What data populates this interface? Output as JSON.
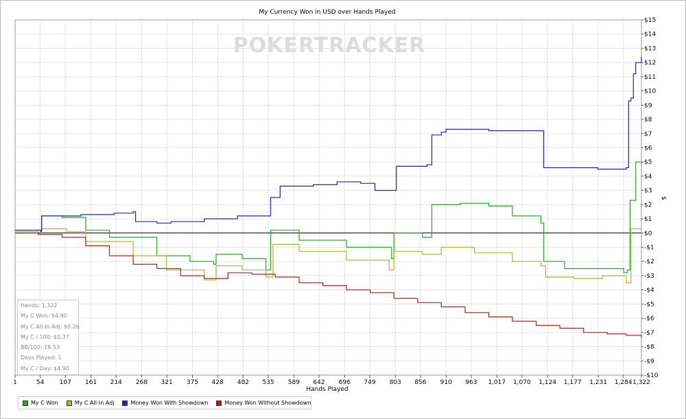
{
  "chart_data": {
    "type": "line",
    "title": "My Currency Won in USD over Hands Played",
    "xlabel": "Hands Played",
    "ylabel": "$",
    "xlim": [
      1,
      1322
    ],
    "ylim": [
      -10,
      15
    ],
    "x_ticks": [
      1,
      54,
      107,
      161,
      214,
      268,
      321,
      375,
      428,
      482,
      535,
      589,
      642,
      696,
      749,
      803,
      856,
      910,
      963,
      1017,
      1070,
      1124,
      1177,
      1231,
      1284,
      1322
    ],
    "y_ticks": [
      15,
      14,
      13,
      12,
      11,
      10,
      9,
      8,
      7,
      6,
      5,
      4,
      3,
      2,
      1,
      0,
      -1,
      -2,
      -3,
      -4,
      -5,
      -6,
      -7,
      -8,
      -9,
      -10
    ],
    "grid": true,
    "legend_position": "bottom",
    "series": [
      {
        "name": "My C Won",
        "color": "#22aa22",
        "points": [
          [
            1,
            0.2
          ],
          [
            55,
            0.1
          ],
          [
            57,
            1.2
          ],
          [
            100,
            1.1
          ],
          [
            150,
            0.2
          ],
          [
            200,
            -0.3
          ],
          [
            300,
            -1.6
          ],
          [
            370,
            -2.0
          ],
          [
            420,
            -2.2
          ],
          [
            425,
            -1.5
          ],
          [
            480,
            -1.8
          ],
          [
            530,
            -2.6
          ],
          [
            540,
            0.2
          ],
          [
            600,
            -0.5
          ],
          [
            700,
            -1.0
          ],
          [
            795,
            -1.8
          ],
          [
            800,
            0.0
          ],
          [
            860,
            -0.3
          ],
          [
            880,
            2.0
          ],
          [
            940,
            2.1
          ],
          [
            1000,
            1.9
          ],
          [
            1050,
            1.2
          ],
          [
            1110,
            0.7
          ],
          [
            1116,
            -2.0
          ],
          [
            1160,
            -2.5
          ],
          [
            1230,
            -2.5
          ],
          [
            1285,
            -2.8
          ],
          [
            1292,
            -2.6
          ],
          [
            1298,
            2.3
          ],
          [
            1310,
            5.0
          ],
          [
            1322,
            4.9
          ]
        ]
      },
      {
        "name": "My C All-In Adj",
        "color": "#b4b428",
        "points": [
          [
            1,
            0.1
          ],
          [
            50,
            -0.1
          ],
          [
            57,
            0.3
          ],
          [
            110,
            0.1
          ],
          [
            150,
            -0.6
          ],
          [
            250,
            -1.6
          ],
          [
            320,
            -2.6
          ],
          [
            400,
            -3.3
          ],
          [
            425,
            -2.3
          ],
          [
            480,
            -2.6
          ],
          [
            530,
            -3.1
          ],
          [
            545,
            -0.8
          ],
          [
            600,
            -1.3
          ],
          [
            700,
            -1.9
          ],
          [
            790,
            -2.6
          ],
          [
            800,
            -1.3
          ],
          [
            860,
            -1.5
          ],
          [
            900,
            -1.0
          ],
          [
            970,
            -1.4
          ],
          [
            1050,
            -2.0
          ],
          [
            1110,
            -2.3
          ],
          [
            1120,
            -3.1
          ],
          [
            1180,
            -3.2
          ],
          [
            1240,
            -3.0
          ],
          [
            1290,
            -3.5
          ],
          [
            1300,
            0.3
          ],
          [
            1322,
            0.3
          ]
        ]
      },
      {
        "name": "Money Won With Showdown",
        "color": "#2222aa",
        "points": [
          [
            1,
            0.2
          ],
          [
            55,
            0.1
          ],
          [
            57,
            1.2
          ],
          [
            140,
            1.3
          ],
          [
            210,
            1.4
          ],
          [
            250,
            1.5
          ],
          [
            255,
            0.8
          ],
          [
            300,
            0.7
          ],
          [
            330,
            0.8
          ],
          [
            400,
            1.0
          ],
          [
            470,
            1.2
          ],
          [
            530,
            1.2
          ],
          [
            540,
            2.5
          ],
          [
            560,
            3.3
          ],
          [
            630,
            3.4
          ],
          [
            680,
            3.6
          ],
          [
            730,
            3.5
          ],
          [
            760,
            3.0
          ],
          [
            795,
            3.0
          ],
          [
            805,
            4.7
          ],
          [
            870,
            4.8
          ],
          [
            880,
            6.9
          ],
          [
            900,
            7.1
          ],
          [
            910,
            7.3
          ],
          [
            1000,
            7.2
          ],
          [
            1110,
            7.2
          ],
          [
            1116,
            4.6
          ],
          [
            1170,
            4.6
          ],
          [
            1230,
            4.5
          ],
          [
            1290,
            4.6
          ],
          [
            1295,
            9.3
          ],
          [
            1300,
            9.5
          ],
          [
            1305,
            11.2
          ],
          [
            1310,
            12.0
          ],
          [
            1322,
            12.4
          ]
        ]
      },
      {
        "name": "Money Won Without Showdown",
        "color": "#aa2222",
        "points": [
          [
            1,
            0.0
          ],
          [
            50,
            -0.1
          ],
          [
            100,
            -0.3
          ],
          [
            150,
            -0.9
          ],
          [
            200,
            -1.6
          ],
          [
            250,
            -2.2
          ],
          [
            300,
            -2.5
          ],
          [
            350,
            -3.0
          ],
          [
            400,
            -3.2
          ],
          [
            450,
            -2.8
          ],
          [
            500,
            -2.9
          ],
          [
            550,
            -3.1
          ],
          [
            600,
            -3.5
          ],
          [
            650,
            -3.7
          ],
          [
            700,
            -4.0
          ],
          [
            750,
            -4.2
          ],
          [
            800,
            -4.6
          ],
          [
            850,
            -4.9
          ],
          [
            900,
            -5.2
          ],
          [
            950,
            -5.6
          ],
          [
            1000,
            -5.9
          ],
          [
            1050,
            -6.2
          ],
          [
            1100,
            -6.5
          ],
          [
            1150,
            -6.7
          ],
          [
            1200,
            -7.0
          ],
          [
            1250,
            -7.1
          ],
          [
            1290,
            -7.2
          ],
          [
            1322,
            -7.4
          ]
        ]
      }
    ]
  },
  "watermark": "POKERTRACKER",
  "stats": [
    "Hands: 1,322",
    "My C Won: $4.90",
    "My C All-In Adj: $0.26",
    "My C / 100: $0.37",
    "BB/100: 18.53",
    "Days Played: 1",
    "My C / Day: $4.90"
  ]
}
